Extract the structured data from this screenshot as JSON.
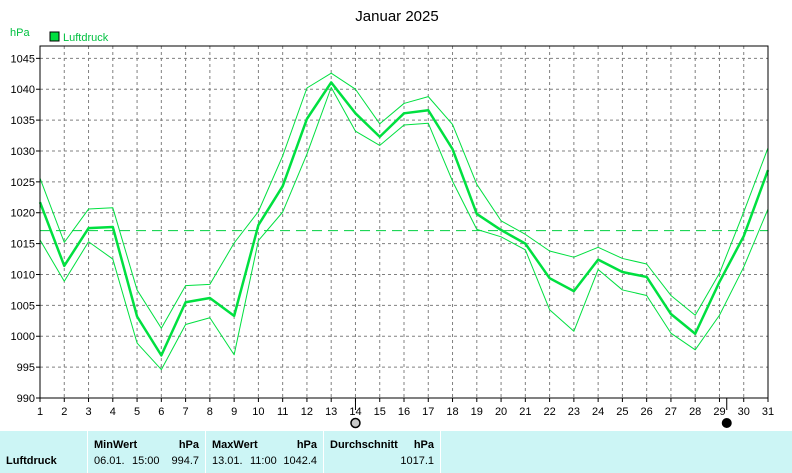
{
  "chart_data": {
    "type": "line",
    "title": "Januar 2025",
    "ylabel": "hPa",
    "legend": [
      "Luftdruck"
    ],
    "legend_placement": "top-left",
    "grid": true,
    "x": [
      1,
      2,
      3,
      4,
      5,
      6,
      7,
      8,
      9,
      10,
      11,
      12,
      13,
      14,
      15,
      16,
      17,
      18,
      19,
      20,
      21,
      22,
      23,
      24,
      25,
      26,
      27,
      28,
      29,
      30,
      31
    ],
    "xlim": [
      1,
      31
    ],
    "ylim": [
      990,
      1047
    ],
    "yticks": [
      990,
      995,
      1000,
      1005,
      1010,
      1015,
      1020,
      1025,
      1030,
      1035,
      1040,
      1045
    ],
    "series": [
      {
        "name": "Luftdruck",
        "values": [
          1021.7,
          1011.4,
          1017.5,
          1017.7,
          1003.2,
          996.9,
          1005.5,
          1006.2,
          1003.3,
          1018.0,
          1024.3,
          1035.2,
          1041.1,
          1036.1,
          1032.3,
          1036.1,
          1036.6,
          1030.3,
          1019.8,
          1017.2,
          1015.0,
          1009.4,
          1007.3,
          1012.4,
          1010.4,
          1009.6,
          1003.6,
          1000.4,
          1008.8,
          1016.2,
          1026.9
        ]
      },
      {
        "values": [
          1025.6,
          1015.2,
          1020.6,
          1020.8,
          1007.5,
          1001.3,
          1008.2,
          1008.4,
          1015.1,
          1020.2,
          1029.2,
          1040.2,
          1042.6,
          1040.0,
          1034.4,
          1037.7,
          1038.8,
          1034.3,
          1024.6,
          1018.7,
          1016.5,
          1013.8,
          1012.8,
          1014.4,
          1012.6,
          1011.7,
          1006.6,
          1003.4,
          1010.2,
          1020.1,
          1030.5
        ]
      },
      {
        "values": [
          1015.6,
          1008.9,
          1015.3,
          1012.5,
          998.9,
          994.6,
          1001.9,
          1003.0,
          997.0,
          1015.5,
          1020.1,
          1029.5,
          1040.3,
          1033.2,
          1030.9,
          1034.2,
          1034.5,
          1025.1,
          1017.3,
          1016.1,
          1014.0,
          1004.3,
          1000.8,
          1010.8,
          1007.5,
          1006.6,
          1000.5,
          997.8,
          1003.4,
          1011.2,
          1020.6
        ]
      }
    ],
    "average": 1017.1,
    "markers": [
      {
        "x": 14,
        "symbol": "full-moon"
      },
      {
        "x": 29.3,
        "symbol": "new-moon"
      }
    ],
    "colors": {
      "line": "#00e040",
      "grid": "#808080",
      "average": "#00d040",
      "legend_fill": "#00e040"
    }
  },
  "stats": {
    "label": "Luftdruck",
    "min": {
      "header": "MinWert",
      "unit": "hPa",
      "date": "06.01.",
      "time": "15:00",
      "value": "994.7"
    },
    "max": {
      "header": "MaxWert",
      "unit": "hPa",
      "date": "13.01.",
      "time": "11:00",
      "value": "1042.4"
    },
    "avg": {
      "header": "Durchschnitt",
      "unit": "hPa",
      "value": "1017.1"
    },
    "background": "#ccf5f5"
  }
}
